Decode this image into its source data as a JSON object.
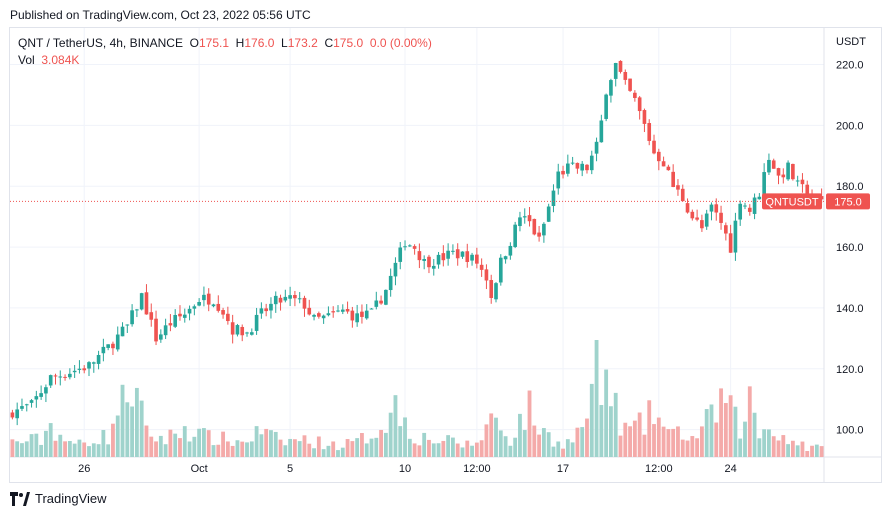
{
  "header": {
    "published": "Published on TradingView.com, Oct 23, 2022 05:56 UTC"
  },
  "legend": {
    "symbol": "QNT / TetherUS, 4h, BINANCE",
    "open_label": "O",
    "open": "175.1",
    "high_label": "H",
    "high": "176.0",
    "low_label": "L",
    "low": "173.2",
    "close_label": "C",
    "close": "175.0",
    "change": "0.0 (0.00%)",
    "vol_label": "Vol",
    "vol": "3.084K"
  },
  "price_tag": {
    "symbol": "QNTUSDT",
    "price": "175.0"
  },
  "footer": {
    "brand": "TradingView"
  },
  "colors": {
    "up": "#26a69a",
    "down": "#ef5350",
    "up_vol": "#9fd3cc",
    "down_vol": "#f4aaa9",
    "grid": "#f0f3fa"
  },
  "chart_data": {
    "type": "candlestick",
    "y_axis_label": "USDT",
    "ylim": [
      91,
      232
    ],
    "y_ticks": [
      100.0,
      120.0,
      140.0,
      160.0,
      180.0,
      200.0,
      220.0
    ],
    "y_tick_labels": [
      "100.0",
      "120.0",
      "140.0",
      "160.0",
      "180.0",
      "200.0",
      "220.0"
    ],
    "x_tick_labels": [
      "26",
      "Oct",
      "5",
      "10",
      "12:00",
      "17",
      "12:00",
      "24"
    ],
    "x_tick_positions": [
      15,
      39,
      58,
      82,
      97,
      115,
      135,
      150
    ],
    "last_price": 175.0,
    "close_path": [
      [
        0,
        106
      ],
      [
        4,
        108
      ],
      [
        8,
        117
      ],
      [
        12,
        119
      ],
      [
        16,
        121
      ],
      [
        20,
        127
      ],
      [
        24,
        134
      ],
      [
        27,
        144
      ],
      [
        30,
        130
      ],
      [
        33,
        135
      ],
      [
        36,
        138
      ],
      [
        39,
        143
      ],
      [
        42,
        143
      ],
      [
        44,
        139
      ],
      [
        46,
        133
      ],
      [
        49,
        132
      ],
      [
        52,
        138
      ],
      [
        55,
        142
      ],
      [
        58,
        143
      ],
      [
        61,
        141
      ],
      [
        63,
        136
      ],
      [
        66,
        137
      ],
      [
        69,
        139
      ],
      [
        72,
        137
      ],
      [
        75,
        138
      ],
      [
        78,
        146
      ],
      [
        80,
        154
      ],
      [
        82,
        162
      ],
      [
        84,
        160
      ],
      [
        86,
        155
      ],
      [
        89,
        156
      ],
      [
        92,
        158
      ],
      [
        95,
        157
      ],
      [
        97,
        155
      ],
      [
        99,
        150
      ],
      [
        100,
        144
      ],
      [
        102,
        155
      ],
      [
        104,
        162
      ],
      [
        106,
        170
      ],
      [
        108,
        168
      ],
      [
        110,
        162
      ],
      [
        112,
        173
      ],
      [
        114,
        184
      ],
      [
        116,
        186
      ],
      [
        118,
        186
      ],
      [
        120,
        186
      ],
      [
        122,
        193
      ],
      [
        123,
        201
      ],
      [
        124,
        212
      ],
      [
        126,
        220
      ],
      [
        128,
        213
      ],
      [
        130,
        208
      ],
      [
        132,
        200
      ],
      [
        134,
        191
      ],
      [
        136,
        188
      ],
      [
        138,
        180
      ],
      [
        140,
        176
      ],
      [
        142,
        170
      ],
      [
        144,
        166
      ],
      [
        146,
        173
      ],
      [
        148,
        168
      ],
      [
        150,
        160
      ],
      [
        152,
        176
      ],
      [
        154,
        172
      ],
      [
        156,
        178
      ],
      [
        158,
        190
      ],
      [
        160,
        183
      ],
      [
        162,
        186
      ],
      [
        164,
        180
      ],
      [
        166,
        178
      ],
      [
        168,
        175
      ]
    ],
    "volume_profile": [
      [
        0,
        5
      ],
      [
        6,
        6
      ],
      [
        8,
        11
      ],
      [
        12,
        4
      ],
      [
        16,
        6
      ],
      [
        20,
        7
      ],
      [
        22,
        16
      ],
      [
        23,
        18
      ],
      [
        24,
        26
      ],
      [
        26,
        20
      ],
      [
        28,
        8
      ],
      [
        32,
        6
      ],
      [
        36,
        10
      ],
      [
        40,
        7
      ],
      [
        44,
        6
      ],
      [
        48,
        5
      ],
      [
        52,
        9
      ],
      [
        56,
        5
      ],
      [
        60,
        6
      ],
      [
        64,
        5
      ],
      [
        68,
        4
      ],
      [
        72,
        5
      ],
      [
        76,
        9
      ],
      [
        78,
        13
      ],
      [
        80,
        17
      ],
      [
        82,
        13
      ],
      [
        84,
        7
      ],
      [
        88,
        6
      ],
      [
        92,
        5
      ],
      [
        96,
        4
      ],
      [
        98,
        7
      ],
      [
        100,
        14
      ],
      [
        102,
        10
      ],
      [
        104,
        6
      ],
      [
        106,
        12
      ],
      [
        108,
        16
      ],
      [
        110,
        10
      ],
      [
        112,
        7
      ],
      [
        114,
        5
      ],
      [
        116,
        5
      ],
      [
        118,
        8
      ],
      [
        120,
        14
      ],
      [
        122,
        31
      ],
      [
        123,
        22
      ],
      [
        124,
        26
      ],
      [
        126,
        16
      ],
      [
        128,
        9
      ],
      [
        130,
        10
      ],
      [
        132,
        11
      ],
      [
        134,
        16
      ],
      [
        136,
        10
      ],
      [
        138,
        7
      ],
      [
        140,
        9
      ],
      [
        142,
        6
      ],
      [
        144,
        10
      ],
      [
        146,
        13
      ],
      [
        148,
        20
      ],
      [
        150,
        15
      ],
      [
        152,
        10
      ],
      [
        154,
        19
      ],
      [
        156,
        8
      ],
      [
        158,
        10
      ],
      [
        160,
        9
      ],
      [
        162,
        5
      ],
      [
        164,
        6
      ],
      [
        166,
        3
      ],
      [
        168,
        3
      ]
    ]
  }
}
